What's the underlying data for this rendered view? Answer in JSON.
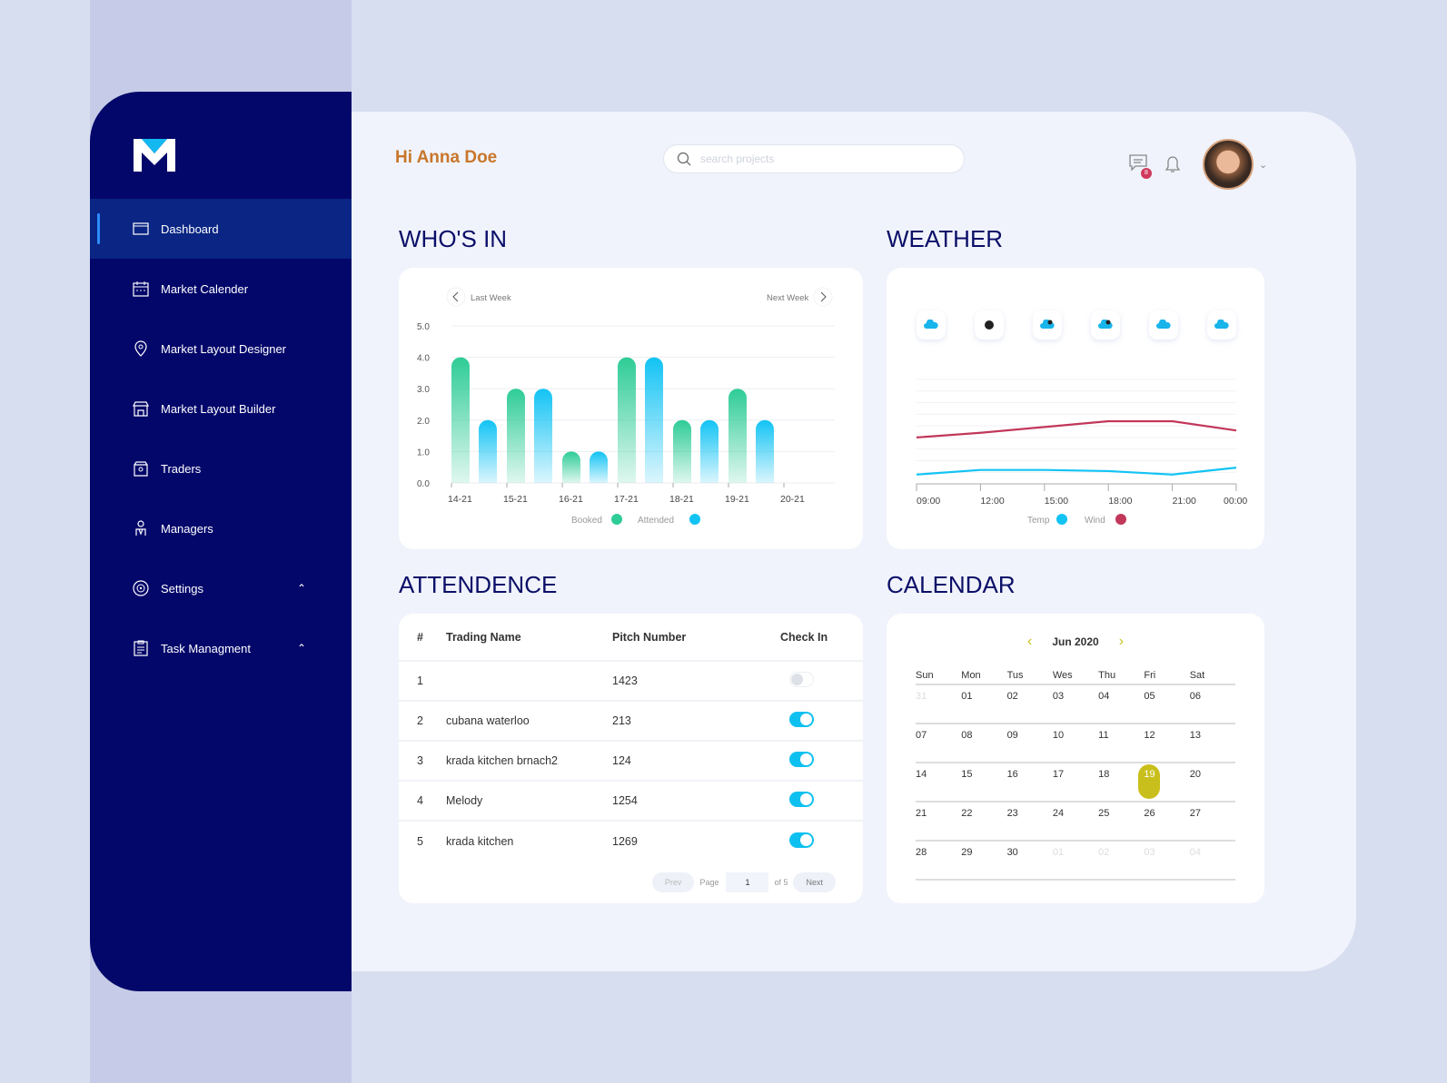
{
  "sidebar": {
    "items": [
      {
        "label": "Dashboard",
        "icon": "dashboard-icon",
        "active": true
      },
      {
        "label": "Market Calender",
        "icon": "calendar-icon"
      },
      {
        "label": "Market Layout Designer",
        "icon": "map-pin-icon"
      },
      {
        "label": "Market Layout Builder",
        "icon": "store-icon"
      },
      {
        "label": "Traders",
        "icon": "trader-icon"
      },
      {
        "label": "Managers",
        "icon": "manager-icon"
      },
      {
        "label": "Settings",
        "icon": "settings-icon",
        "expandable": true
      },
      {
        "label": "Task Managment",
        "icon": "clipboard-icon",
        "expandable": true
      }
    ]
  },
  "header": {
    "greeting": "Hi Anna Doe",
    "search_placeholder": "search projects",
    "message_count": "8"
  },
  "whos_in": {
    "title": "WHO'S IN",
    "prev_label": "Last Week",
    "next_label": "Next Week"
  },
  "weather": {
    "title": "WEATHER",
    "icons": [
      "rain-cloud-icon",
      "moon-icon",
      "night-rain-icon",
      "night-cloud-icon",
      "rain-cloud-icon",
      "cloud-icon"
    ]
  },
  "chart_data": [
    {
      "type": "bar",
      "categories": [
        "14-21",
        "15-21",
        "16-21",
        "17-21",
        "18-21",
        "19-21",
        "20-21"
      ],
      "series": [
        {
          "name": "Booked",
          "color": "#2ecc96",
          "values": [
            4,
            3,
            1,
            4,
            2,
            3,
            null
          ]
        },
        {
          "name": "Attended",
          "color": "#12c3f4",
          "values": [
            2,
            3,
            1,
            4,
            2,
            2,
            null
          ]
        }
      ],
      "ylim": [
        0,
        5
      ],
      "yticks": [
        "0.0",
        "1.0",
        "2.0",
        "3.0",
        "4.0",
        "5.0"
      ],
      "grid": true,
      "legend": "bottom"
    },
    {
      "type": "line",
      "x": [
        "09:00",
        "12:00",
        "15:00",
        "18:00",
        "21:00",
        "00:00"
      ],
      "series": [
        {
          "name": "Temp",
          "color": "#12c3f4",
          "values": [
            0.8,
            1.2,
            1.2,
            1.1,
            0.8,
            1.4
          ]
        },
        {
          "name": "Wind",
          "color": "#c2375a",
          "values": [
            4.0,
            4.4,
            4.9,
            5.4,
            5.4,
            4.6
          ]
        }
      ],
      "ylim": [
        0,
        9
      ],
      "grid": true,
      "legend": "bottom"
    }
  ],
  "attendance": {
    "title": "ATTENDENCE",
    "columns": [
      "#",
      "Trading Name",
      "Pitch Number",
      "Check In"
    ],
    "rows": [
      {
        "n": "1",
        "name": "",
        "pitch": "1423",
        "checked": false
      },
      {
        "n": "2",
        "name": "cubana waterloo",
        "pitch": "213",
        "checked": true
      },
      {
        "n": "3",
        "name": "krada kitchen brnach2",
        "pitch": "124",
        "checked": true
      },
      {
        "n": "4",
        "name": "Melody",
        "pitch": "1254",
        "checked": true
      },
      {
        "n": "5",
        "name": "krada kitchen",
        "pitch": "1269",
        "checked": true
      }
    ],
    "pager": {
      "prev": "Prev",
      "page_label": "Page",
      "page": "1",
      "of": "of 5",
      "next": "Next"
    }
  },
  "calendar": {
    "title": "CALENDAR",
    "month": "Jun 2020",
    "accent": "#c9bf1c",
    "days": [
      "Sun",
      "Mon",
      "Tus",
      "Wes",
      "Thu",
      "Fri",
      "Sat"
    ],
    "weeks": [
      [
        "31",
        "01",
        "02",
        "03",
        "04",
        "05",
        "06"
      ],
      [
        "07",
        "08",
        "09",
        "10",
        "11",
        "12",
        "13"
      ],
      [
        "14",
        "15",
        "16",
        "17",
        "18",
        "19",
        "20"
      ],
      [
        "21",
        "22",
        "23",
        "24",
        "25",
        "26",
        "27"
      ],
      [
        "28",
        "29",
        "30",
        "01",
        "02",
        "03",
        "04"
      ]
    ],
    "selected": "19"
  }
}
